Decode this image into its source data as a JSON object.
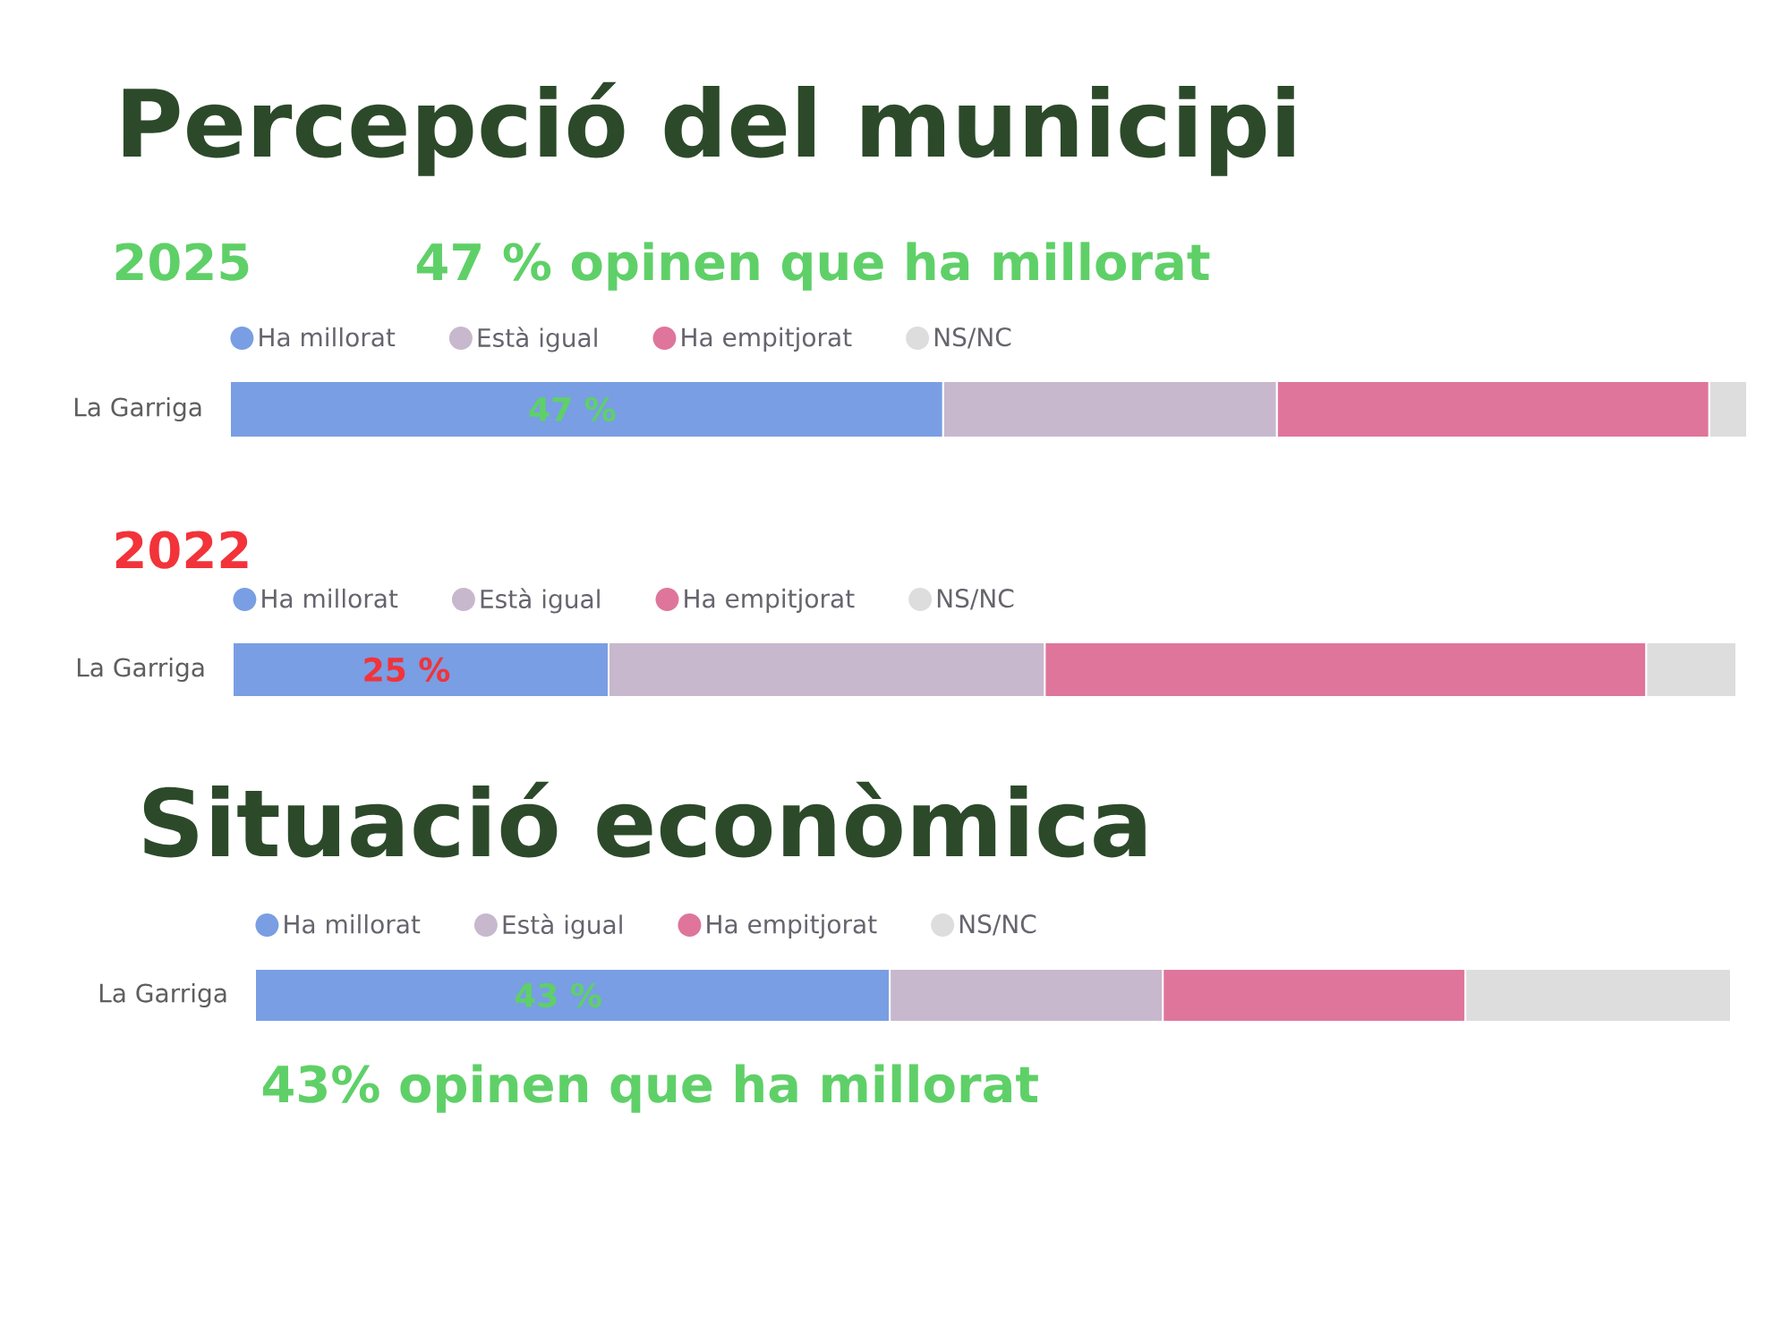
{
  "chart_data": [
    {
      "type": "bar",
      "orientation": "horizontal",
      "stacked": true,
      "title": "Percepció del municipi",
      "subtitle": "2025",
      "annotations": [
        "47 % opinen que ha millorat"
      ],
      "categories": [
        "La Garriga"
      ],
      "series": [
        {
          "name": "Ha millorat",
          "color": "#799ee3",
          "values": [
            47
          ],
          "value_labels": [
            "47 %"
          ]
        },
        {
          "name": "Està igual",
          "color": "#c7b8cd",
          "values": [
            22
          ]
        },
        {
          "name": "Ha empitjorat",
          "color": "#df759b",
          "values": [
            28.5
          ]
        },
        {
          "name": "NS/NC",
          "color": "#dddddd",
          "values": [
            2.5
          ]
        }
      ],
      "xlim": [
        0,
        100
      ],
      "legend": "top left",
      "tick_labels": "y"
    },
    {
      "type": "bar",
      "orientation": "horizontal",
      "stacked": true,
      "subtitle": "2022",
      "categories": [
        "La Garriga"
      ],
      "series": [
        {
          "name": "Ha millorat",
          "color": "#799ee3",
          "values": [
            25
          ],
          "value_labels": [
            "25 %"
          ]
        },
        {
          "name": "Està igual",
          "color": "#c7b8cd",
          "values": [
            29
          ]
        },
        {
          "name": "Ha empitjorat",
          "color": "#df759b",
          "values": [
            40
          ]
        },
        {
          "name": "NS/NC",
          "color": "#dddddd",
          "values": [
            6
          ]
        }
      ],
      "xlim": [
        0,
        100
      ],
      "legend": "top left",
      "tick_labels": "y"
    },
    {
      "type": "bar",
      "orientation": "horizontal",
      "stacked": true,
      "title": "Situació econòmica",
      "annotations": [
        "43% opinen que ha millorat"
      ],
      "categories": [
        "La Garriga"
      ],
      "series": [
        {
          "name": "Ha millorat",
          "color": "#799ee3",
          "values": [
            43
          ],
          "value_labels": [
            "43 %"
          ]
        },
        {
          "name": "Està igual",
          "color": "#c7b8cd",
          "values": [
            18.5
          ]
        },
        {
          "name": "Ha empitjorat",
          "color": "#df759b",
          "values": [
            20.5
          ]
        },
        {
          "name": "NS/NC",
          "color": "#dddddd",
          "values": [
            18
          ]
        }
      ],
      "xlim": [
        0,
        100
      ],
      "legend": "top left",
      "tick_labels": "y"
    }
  ]
}
